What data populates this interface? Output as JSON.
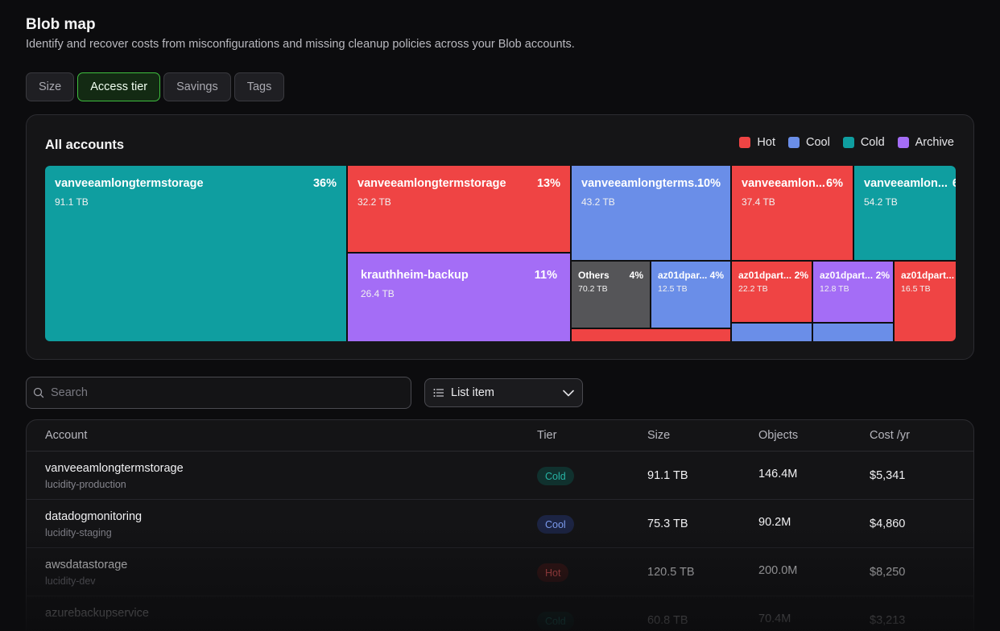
{
  "header": {
    "title": "Blob map",
    "subtitle": "Identify and recover costs from misconfigurations and missing cleanup policies across your Blob accounts."
  },
  "tabs": [
    {
      "label": "Size",
      "active": false
    },
    {
      "label": "Access tier",
      "active": true
    },
    {
      "label": "Savings",
      "active": false
    },
    {
      "label": "Tags",
      "active": false
    }
  ],
  "map": {
    "title": "All accounts",
    "legend": [
      {
        "label": "Hot",
        "color": "#ef4444"
      },
      {
        "label": "Cool",
        "color": "#6a8ee8"
      },
      {
        "label": "Cold",
        "color": "#0f9ea0"
      },
      {
        "label": "Archive",
        "color": "#a46df6"
      }
    ],
    "cells": [
      {
        "name": "vanveeamlongtermstorage",
        "pct": "36%",
        "size": "91.1 TB",
        "tier": "cold"
      },
      {
        "name": "vanveeamlongtermstorage",
        "pct": "13%",
        "size": "32.2 TB",
        "tier": "hot"
      },
      {
        "name": "krauthheim-backup",
        "pct": "11%",
        "size": "26.4 TB",
        "tier": "archive"
      },
      {
        "name": "vanveeamlongterms...",
        "pct": "10%",
        "size": "43.2 TB",
        "tier": "cool"
      },
      {
        "name": "vanveeamlon...",
        "pct": "6%",
        "size": "37.4 TB",
        "tier": "hot"
      },
      {
        "name": "vanveeamlon...",
        "pct": "6",
        "size": "54.2 TB",
        "tier": "cold"
      },
      {
        "name": "Others",
        "pct": "4%",
        "size": "70.2 TB",
        "tier": "others"
      },
      {
        "name": "az01dpar...",
        "pct": "4%",
        "size": "12.5 TB",
        "tier": "cool"
      },
      {
        "name": "az01dpart...",
        "pct": "2%",
        "size": "22.2 TB",
        "tier": "hot"
      },
      {
        "name": "az01dpart...",
        "pct": "2%",
        "size": "12.8 TB",
        "tier": "archive"
      },
      {
        "name": "az01dpart...",
        "pct": "",
        "size": "16.5 TB",
        "tier": "hot"
      }
    ]
  },
  "search": {
    "placeholder": "Search",
    "value": ""
  },
  "view_select": {
    "label": "List item"
  },
  "table": {
    "columns": [
      "Account",
      "Tier",
      "Size",
      "Objects",
      "Cost /yr"
    ],
    "rows": [
      {
        "account": "vanveeamlongtermstorage",
        "sub": "lucidity-production",
        "tier": "Cold",
        "size": "91.1 TB",
        "objects": "146.4M",
        "cost": "$5,341"
      },
      {
        "account": "datadogmonitoring",
        "sub": "lucidity-staging",
        "tier": "Cool",
        "size": "75.3 TB",
        "objects": "90.2M",
        "cost": "$4,860"
      },
      {
        "account": "awsdatastorage",
        "sub": "lucidity-dev",
        "tier": "Hot",
        "size": "120.5 TB",
        "objects": "200.0M",
        "cost": "$8,250"
      },
      {
        "account": "azurebackupservice",
        "sub": "",
        "tier": "Cold",
        "size": "60.8 TB",
        "objects": "70.4M",
        "cost": "$3,213"
      }
    ]
  }
}
